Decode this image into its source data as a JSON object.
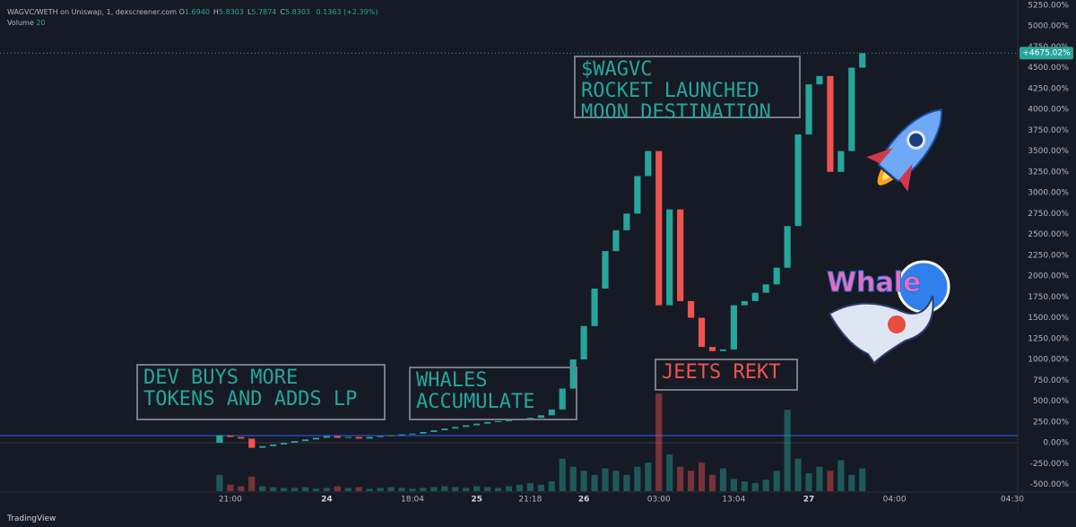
{
  "chart_data": {
    "type": "candlestick",
    "title": "WAGVC/WETH on Uniswap, 1, dexscreener.com",
    "ohlc_labels": [
      "O",
      "H",
      "L",
      "C"
    ],
    "ohlc_values": [
      "1.6940",
      "5.8303",
      "5.7874",
      "5.8303"
    ],
    "change": "0.1363 (+2.39%)",
    "volume_label": "Volume",
    "volume_setting": "20",
    "categories": [
      null,
      null,
      null,
      null,
      null,
      null,
      null,
      null,
      null,
      null,
      null,
      null,
      null,
      null,
      null,
      null,
      null,
      null,
      null,
      null,
      null,
      "21:00",
      null,
      null,
      null,
      null,
      null,
      null,
      null,
      null,
      "24",
      null,
      null,
      null,
      null,
      null,
      null,
      null,
      "18:04",
      null,
      null,
      null,
      null,
      null,
      "25",
      null,
      null,
      null,
      null,
      "21:18",
      null,
      null,
      null,
      null,
      "26",
      null,
      null,
      null,
      null,
      null,
      null,
      "03:00",
      null,
      null,
      null,
      null,
      null,
      null,
      "13:04",
      null,
      null,
      null,
      null,
      null,
      null,
      "27",
      null,
      null,
      null,
      null,
      null,
      null,
      null,
      "04:00",
      null,
      null,
      null,
      null,
      null,
      null,
      null,
      null,
      null,
      null,
      "04:30"
    ],
    "open": [
      null,
      null,
      null,
      null,
      null,
      null,
      null,
      null,
      null,
      null,
      null,
      null,
      null,
      null,
      null,
      null,
      null,
      null,
      null,
      null,
      0,
      90,
      70,
      50,
      -60,
      -40,
      -20,
      0,
      20,
      40,
      60,
      80,
      60,
      70,
      50,
      70,
      80,
      90,
      100,
      110,
      130,
      150,
      170,
      190,
      210,
      230,
      250,
      260,
      270,
      280,
      300,
      330,
      400,
      650,
      1000,
      1400,
      1850,
      2300,
      2550,
      2750,
      3200,
      3500,
      1650,
      2800,
      1700,
      1500,
      1150,
      1100,
      1120,
      1650,
      1700,
      1800,
      1900,
      2100,
      2600,
      3700,
      4300,
      4400,
      3250,
      3500,
      4500,
      null,
      null,
      null,
      null,
      null,
      null,
      null,
      null,
      null,
      null,
      null,
      null,
      null,
      null
    ],
    "close": [
      null,
      null,
      null,
      null,
      null,
      null,
      null,
      null,
      null,
      null,
      null,
      null,
      null,
      null,
      null,
      null,
      null,
      null,
      null,
      null,
      90,
      70,
      50,
      -60,
      -40,
      -20,
      0,
      20,
      40,
      60,
      80,
      60,
      70,
      50,
      70,
      80,
      90,
      100,
      110,
      130,
      150,
      170,
      190,
      210,
      230,
      250,
      260,
      270,
      280,
      300,
      330,
      400,
      650,
      1000,
      1400,
      1850,
      2300,
      2550,
      2750,
      3200,
      3500,
      1650,
      2800,
      1700,
      1500,
      1150,
      1100,
      1120,
      1650,
      1700,
      1800,
      1900,
      2100,
      2600,
      3700,
      4300,
      4400,
      3250,
      3500,
      4500,
      4675.02,
      null,
      null,
      null,
      null,
      null,
      null,
      null,
      null,
      null,
      null,
      null,
      null,
      null,
      null
    ],
    "volume": [
      null,
      null,
      null,
      null,
      null,
      null,
      null,
      null,
      null,
      null,
      null,
      null,
      null,
      null,
      null,
      null,
      null,
      null,
      null,
      null,
      20,
      8,
      6,
      18,
      6,
      5,
      4,
      4,
      5,
      3,
      4,
      6,
      4,
      5,
      3,
      4,
      5,
      4,
      3,
      4,
      5,
      6,
      5,
      4,
      6,
      5,
      4,
      6,
      8,
      10,
      8,
      12,
      40,
      30,
      25,
      20,
      28,
      25,
      20,
      30,
      35,
      120,
      45,
      30,
      25,
      35,
      20,
      28,
      15,
      12,
      10,
      14,
      25,
      100,
      40,
      22,
      30,
      25,
      38,
      20,
      28,
      null,
      null,
      null,
      null,
      null,
      null,
      null,
      null,
      null,
      null,
      null,
      null,
      null,
      null
    ],
    "volume_lim": [
      0,
      130
    ],
    "up_color": "#26a69a",
    "down_color": "#ef5350",
    "ylim": [
      -580,
      5312
    ],
    "yticks": [
      {
        "value": -500,
        "label": "-500.00%"
      },
      {
        "value": -250,
        "label": "-250.00%"
      },
      {
        "value": 0,
        "label": "0.00%"
      },
      {
        "value": 250,
        "label": "250.00%"
      },
      {
        "value": 500,
        "label": "500.00%"
      },
      {
        "value": 750,
        "label": "750.00%"
      },
      {
        "value": 1000,
        "label": "1000.00%"
      },
      {
        "value": 1250,
        "label": "1250.00%"
      },
      {
        "value": 1500,
        "label": "1500.00%"
      },
      {
        "value": 1750,
        "label": "1750.00%"
      },
      {
        "value": 2000,
        "label": "2000.00%"
      },
      {
        "value": 2250,
        "label": "2250.00%"
      },
      {
        "value": 2500,
        "label": "2500.00%"
      },
      {
        "value": 2750,
        "label": "2750.00%"
      },
      {
        "value": 3000,
        "label": "3000.00%"
      },
      {
        "value": 3250,
        "label": "3250.00%"
      },
      {
        "value": 3500,
        "label": "3500.00%"
      },
      {
        "value": 3750,
        "label": "3750.00%"
      },
      {
        "value": 4000,
        "label": "4000.00%"
      },
      {
        "value": 4250,
        "label": "4250.00%"
      },
      {
        "value": 4500,
        "label": "4500.00%"
      },
      {
        "value": 4750,
        "label": "4750.00%"
      },
      {
        "value": 5000,
        "label": "5000.00%"
      },
      {
        "value": 5250,
        "label": "5250.00%"
      }
    ],
    "grid": false,
    "reference_lines": [
      {
        "value": 86,
        "color": "#2962ff"
      },
      {
        "value": 0,
        "color": "#363a45"
      }
    ],
    "last_price": 4675.02,
    "last_price_label": "+4675.02%",
    "annotations": [
      {
        "lines": [
          "DEV BUYS MORE",
          "TOKENS AND ADDS LP"
        ],
        "color": "#26a69a"
      },
      {
        "lines": [
          "WHALES",
          "ACCUMULATE"
        ],
        "color": "#26a69a"
      },
      {
        "lines": [
          "JEETS REKT"
        ],
        "color": "#ef5350"
      },
      {
        "lines": [
          "$WAGVC",
          "ROCKET LAUNCHED",
          "MOON DESTINATION"
        ],
        "color": "#26a69a"
      }
    ],
    "sticker": "Whale",
    "brand": "TradingView"
  }
}
